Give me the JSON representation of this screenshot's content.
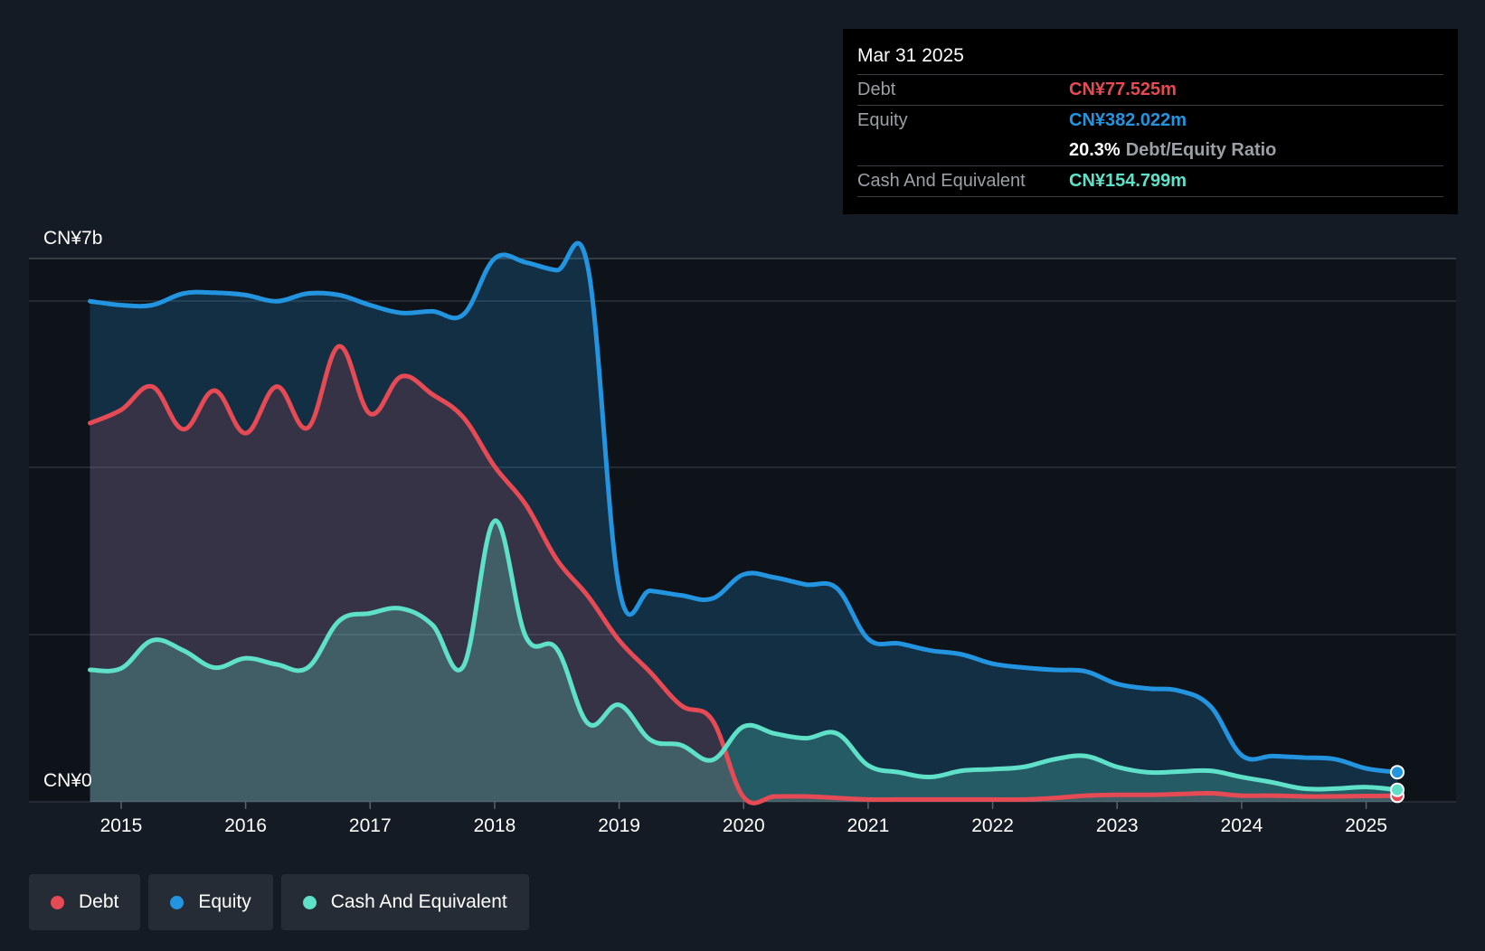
{
  "chart_data": {
    "type": "area",
    "y_axis_labels": {
      "top": "CN¥7b",
      "bottom": "CN¥0"
    },
    "ylim": [
      0,
      7000
    ],
    "xlim": [
      2014.55,
      2025.25
    ],
    "x_ticks": [
      "2015",
      "2016",
      "2017",
      "2018",
      "2019",
      "2020",
      "2021",
      "2022",
      "2023",
      "2024",
      "2025"
    ],
    "grid": true,
    "legend_position": "bottom-left",
    "series": [
      {
        "name": "Equity",
        "color": "#2394df",
        "x": [
          2014.75,
          2015.0,
          2015.25,
          2015.5,
          2015.75,
          2016.0,
          2016.25,
          2016.5,
          2016.75,
          2017.0,
          2017.25,
          2017.5,
          2017.75,
          2018.0,
          2018.25,
          2018.5,
          2018.75,
          2019.0,
          2019.25,
          2019.5,
          2019.75,
          2020.0,
          2020.25,
          2020.5,
          2020.75,
          2021.0,
          2021.25,
          2021.5,
          2021.75,
          2022.0,
          2022.25,
          2022.5,
          2022.75,
          2023.0,
          2023.25,
          2023.5,
          2023.75,
          2024.0,
          2024.25,
          2024.5,
          2024.75,
          2025.0,
          2025.25
        ],
        "values": [
          6450,
          6400,
          6400,
          6550,
          6560,
          6530,
          6450,
          6550,
          6530,
          6400,
          6300,
          6320,
          6280,
          7000,
          6950,
          6850,
          6880,
          2750,
          2720,
          2660,
          2620,
          2930,
          2890,
          2800,
          2750,
          2100,
          2040,
          1950,
          1900,
          1780,
          1730,
          1700,
          1680,
          1520,
          1460,
          1430,
          1230,
          600,
          590,
          570,
          550,
          430,
          382
        ]
      },
      {
        "name": "Debt",
        "color": "#e64a55",
        "x": [
          2014.75,
          2015.0,
          2015.25,
          2015.5,
          2015.75,
          2016.0,
          2016.25,
          2016.5,
          2016.75,
          2017.0,
          2017.25,
          2017.5,
          2017.75,
          2018.0,
          2018.25,
          2018.5,
          2018.75,
          2019.0,
          2019.25,
          2019.5,
          2019.75,
          2020.0,
          2020.25,
          2020.5,
          2020.75,
          2021.0,
          2021.25,
          2021.5,
          2021.75,
          2022.0,
          2022.25,
          2022.5,
          2022.75,
          2023.0,
          2023.25,
          2023.5,
          2023.75,
          2024.0,
          2024.25,
          2024.5,
          2024.75,
          2025.0,
          2025.25
        ],
        "values": [
          4880,
          5050,
          5350,
          4800,
          5300,
          4750,
          5350,
          4820,
          5870,
          5000,
          5480,
          5250,
          4950,
          4320,
          3830,
          3120,
          2650,
          2080,
          1670,
          1240,
          1050,
          60,
          70,
          70,
          50,
          30,
          30,
          30,
          30,
          30,
          30,
          50,
          80,
          90,
          90,
          100,
          110,
          80,
          80,
          70,
          70,
          75,
          78
        ]
      },
      {
        "name": "Cash And Equivalent",
        "color": "#5fe0c8",
        "x": [
          2014.75,
          2015.0,
          2015.25,
          2015.5,
          2015.75,
          2016.0,
          2016.25,
          2016.5,
          2016.75,
          2017.0,
          2017.25,
          2017.5,
          2017.75,
          2018.0,
          2018.25,
          2018.5,
          2018.75,
          2019.0,
          2019.25,
          2019.5,
          2019.75,
          2020.0,
          2020.25,
          2020.5,
          2020.75,
          2021.0,
          2021.25,
          2021.5,
          2021.75,
          2022.0,
          2022.25,
          2022.5,
          2022.75,
          2023.0,
          2023.25,
          2023.5,
          2023.75,
          2024.0,
          2024.25,
          2024.5,
          2024.75,
          2025.0,
          2025.25
        ],
        "values": [
          1700,
          1720,
          2080,
          1950,
          1730,
          1850,
          1770,
          1730,
          2330,
          2430,
          2490,
          2280,
          1750,
          3620,
          2130,
          1970,
          1010,
          1250,
          800,
          730,
          540,
          970,
          880,
          820,
          880,
          470,
          380,
          320,
          400,
          420,
          450,
          550,
          590,
          450,
          380,
          390,
          400,
          320,
          250,
          170,
          170,
          190,
          155
        ]
      }
    ]
  },
  "tooltip": {
    "date": "Mar 31 2025",
    "debt_label": "Debt",
    "debt_value": "CN¥77.525m",
    "equity_label": "Equity",
    "equity_value": "CN¥382.022m",
    "ratio_value": "20.3%",
    "ratio_label": "Debt/Equity Ratio",
    "cash_label": "Cash And Equivalent",
    "cash_value": "CN¥154.799m"
  },
  "legend": {
    "items": [
      {
        "label": "Debt",
        "color": "#e64a55"
      },
      {
        "label": "Equity",
        "color": "#2394df"
      },
      {
        "label": "Cash And Equivalent",
        "color": "#5fe0c8"
      }
    ]
  },
  "colors": {
    "background": "#151b24",
    "plot_background": "#0e1219",
    "gridline": "#2c323b"
  }
}
